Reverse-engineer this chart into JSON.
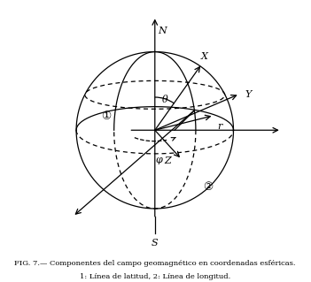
{
  "bg_color": "#ffffff",
  "sphere_color": "#000000",
  "caption_line1": "FIG. 7.— Componentes del campo geomagnético en coordenadas esféricas.",
  "caption_line2": "1: Línea de latitud, 2: Línea de longitud.",
  "label_N": "N",
  "label_S": "S",
  "label_X": "X",
  "label_Y": "Y",
  "label_Z": "Z",
  "label_r": "r",
  "label_theta": "θ",
  "label_phi": "φ",
  "label_1": "①",
  "label_2": "②"
}
